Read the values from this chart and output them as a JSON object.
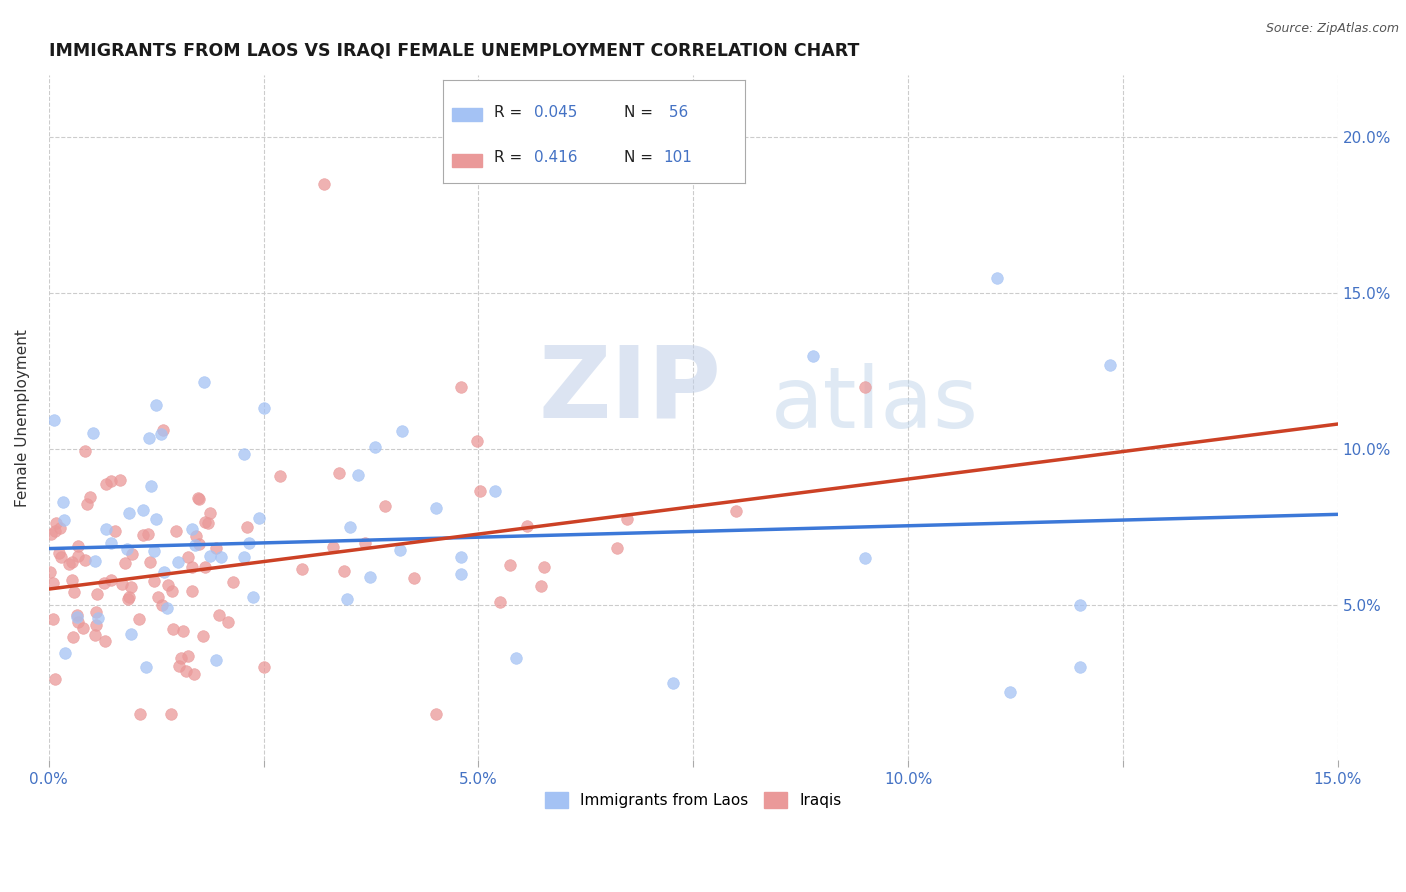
{
  "title": "IMMIGRANTS FROM LAOS VS IRAQI FEMALE UNEMPLOYMENT CORRELATION CHART",
  "source": "Source: ZipAtlas.com",
  "ylabel": "Female Unemployment",
  "xlim": [
    0.0,
    0.15
  ],
  "ylim": [
    0.0,
    0.22
  ],
  "xticks": [
    0.0,
    0.025,
    0.05,
    0.075,
    0.1,
    0.125,
    0.15
  ],
  "xticklabels": [
    "0.0%",
    "",
    "",
    "",
    "",
    "",
    "15.0%"
  ],
  "yticks_right": [
    0.05,
    0.1,
    0.15,
    0.2
  ],
  "yticklabels_right": [
    "5.0%",
    "10.0%",
    "15.0%",
    "20.0%"
  ],
  "blue_color": "#a4c2f4",
  "pink_color": "#ea9999",
  "blue_line_color": "#3c78d8",
  "pink_line_color": "#cc4125",
  "watermark_zip": "ZIP",
  "watermark_atlas": "atlas",
  "background_color": "#ffffff",
  "grid_color": "#cccccc",
  "tick_color": "#4472c4",
  "legend_blue_r": "R = ",
  "legend_blue_r_val": "0.045",
  "legend_blue_n": "N = ",
  "legend_blue_n_val": " 56",
  "legend_pink_r_val": "0.416",
  "legend_pink_n_val": "101",
  "blue_line_x0": 0.0,
  "blue_line_y0": 0.068,
  "blue_line_x1": 0.15,
  "blue_line_y1": 0.079,
  "pink_line_x0": 0.0,
  "pink_line_y0": 0.055,
  "pink_line_x1": 0.15,
  "pink_line_y1": 0.108
}
